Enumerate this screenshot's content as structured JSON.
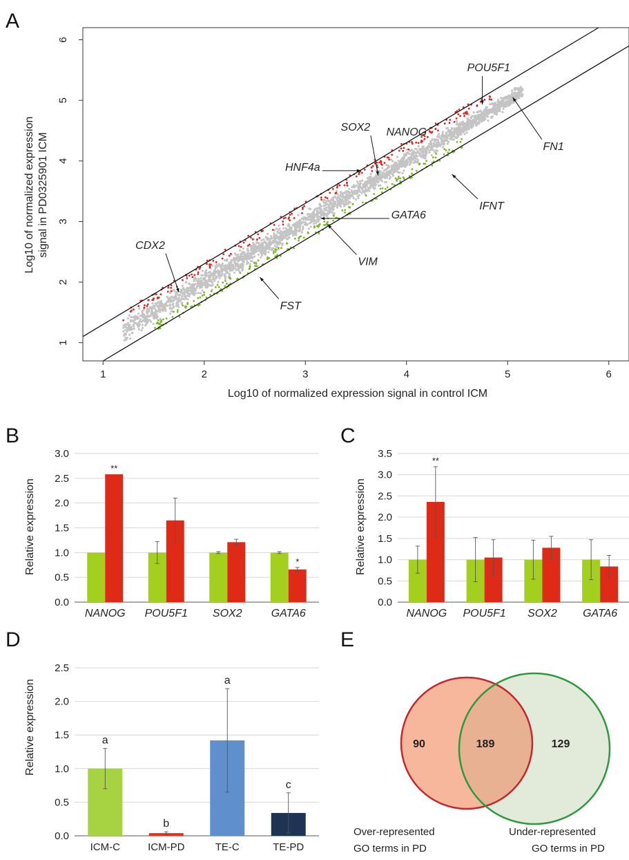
{
  "panels": {
    "a": "A",
    "b": "B",
    "c": "C",
    "d": "D",
    "e": "E"
  },
  "chart_data": [
    {
      "panel": "A",
      "type": "scatter",
      "xlabel": "Log10 of normalized expression signal in control ICM",
      "ylabel_line1": "Log10 of normalized expression",
      "ylabel_line2": "signal in PD0325901 ICM",
      "xlim": [
        0.8,
        6.2
      ],
      "ylim": [
        0.7,
        6.2
      ],
      "xticks": [
        "1",
        "2",
        "3",
        "4",
        "5",
        "6"
      ],
      "yticks": [
        "1",
        "2",
        "3",
        "4",
        "5",
        "6"
      ],
      "point_range": [
        1.2,
        5.15
      ],
      "guide_line_offsets": [
        0.301,
        -0.301
      ],
      "colors": {
        "neutral": "#c4c4c4",
        "up": "#d42a20",
        "down": "#7ab82a"
      },
      "annotations": [
        {
          "label": "NANOG",
          "text_x": 3.8,
          "text_y": 4.42,
          "point_x": 4.15,
          "point_y": 4.55
        },
        {
          "label": "POU5F1",
          "text_x": 4.6,
          "text_y": 5.48,
          "point_x": 4.75,
          "point_y": 4.93
        },
        {
          "label": "SOX2",
          "text_x": 3.35,
          "text_y": 4.5,
          "point_x": 3.72,
          "point_y": 3.76
        },
        {
          "label": "HNF4a",
          "text_x": 2.8,
          "text_y": 3.84,
          "point_x": 3.55,
          "point_y": 3.84
        },
        {
          "label": "GATA6",
          "text_x": 3.85,
          "text_y": 3.05,
          "point_x": 3.15,
          "point_y": 3.05
        },
        {
          "label": "CDX2",
          "text_x": 1.32,
          "text_y": 2.55,
          "point_x": 1.75,
          "point_y": 1.83
        },
        {
          "label": "VIM",
          "text_x": 3.52,
          "text_y": 2.28,
          "point_x": 3.22,
          "point_y": 2.95
        },
        {
          "label": "FST",
          "text_x": 2.75,
          "text_y": 1.55,
          "point_x": 2.55,
          "point_y": 2.08
        },
        {
          "label": "FN1",
          "text_x": 5.35,
          "text_y": 4.18,
          "point_x": 5.05,
          "point_y": 5.05
        },
        {
          "label": "IFNT",
          "text_x": 4.72,
          "text_y": 3.2,
          "point_x": 4.45,
          "point_y": 3.78
        }
      ]
    },
    {
      "panel": "B",
      "type": "bar",
      "ylabel": "Relative expression",
      "ylim": [
        0,
        3.0
      ],
      "yticks": [
        "0.0",
        "0.5",
        "1.0",
        "1.5",
        "2.0",
        "2.5",
        "3.0"
      ],
      "categories": [
        "NANOG",
        "POU5F1",
        "SOX2",
        "GATA6"
      ],
      "series": [
        {
          "color": "#a3cf1e",
          "values": [
            1.0,
            1.0,
            1.0,
            1.0
          ],
          "errors": [
            0.0,
            0.22,
            0.02,
            0.02
          ]
        },
        {
          "color": "#df2a17",
          "values": [
            2.58,
            1.65,
            1.21,
            0.66
          ],
          "errors": [
            0.0,
            0.45,
            0.06,
            0.04
          ],
          "labels": [
            "**",
            "",
            "",
            "*"
          ]
        }
      ]
    },
    {
      "panel": "C",
      "type": "bar",
      "ylabel": "Relative expression",
      "ylim": [
        0,
        3.5
      ],
      "yticks": [
        "0.0",
        "0.5",
        "1.0",
        "1.5",
        "2.0",
        "2.5",
        "3.0",
        "3.5"
      ],
      "categories": [
        "NANOG",
        "POU5F1",
        "SOX2",
        "GATA6"
      ],
      "series": [
        {
          "color": "#a3cf1e",
          "values": [
            1.0,
            1.0,
            1.0,
            1.0
          ],
          "errors": [
            0.32,
            0.52,
            0.46,
            0.47
          ]
        },
        {
          "color": "#df2a17",
          "values": [
            2.36,
            1.05,
            1.28,
            0.84
          ],
          "errors": [
            0.83,
            0.42,
            0.27,
            0.26
          ],
          "labels": [
            "**",
            "",
            "",
            ""
          ]
        }
      ]
    },
    {
      "panel": "D",
      "type": "bar",
      "ylabel": "Relative expression",
      "ylim": [
        0,
        2.5
      ],
      "yticks": [
        "0.0",
        "0.5",
        "1.0",
        "1.5",
        "2.0",
        "2.5"
      ],
      "categories": [
        "ICM-C",
        "ICM-PD",
        "TE-C",
        "TE-PD"
      ],
      "values": [
        1.0,
        0.04,
        1.42,
        0.34
      ],
      "errors": [
        0.3,
        0.02,
        0.77,
        0.3
      ],
      "labels": [
        "a",
        "b",
        "a",
        "c"
      ],
      "colors": [
        "#a7d342",
        "#e0321c",
        "#5f8fcc",
        "#1f3352"
      ]
    },
    {
      "panel": "E",
      "type": "venn",
      "sets": [
        {
          "label_line1": "Over-represented",
          "label_line2": "GO terms in PD",
          "only": 90,
          "stroke": "#c2272d",
          "fill": "#f6b79c"
        },
        {
          "label_line1": "Under-represented",
          "label_line2": "GO terms in PD",
          "only": 129,
          "stroke": "#2a9a3c",
          "fill": "#e2ead9"
        }
      ],
      "overlap": 189,
      "overlap_fill": "#e8b292"
    }
  ]
}
